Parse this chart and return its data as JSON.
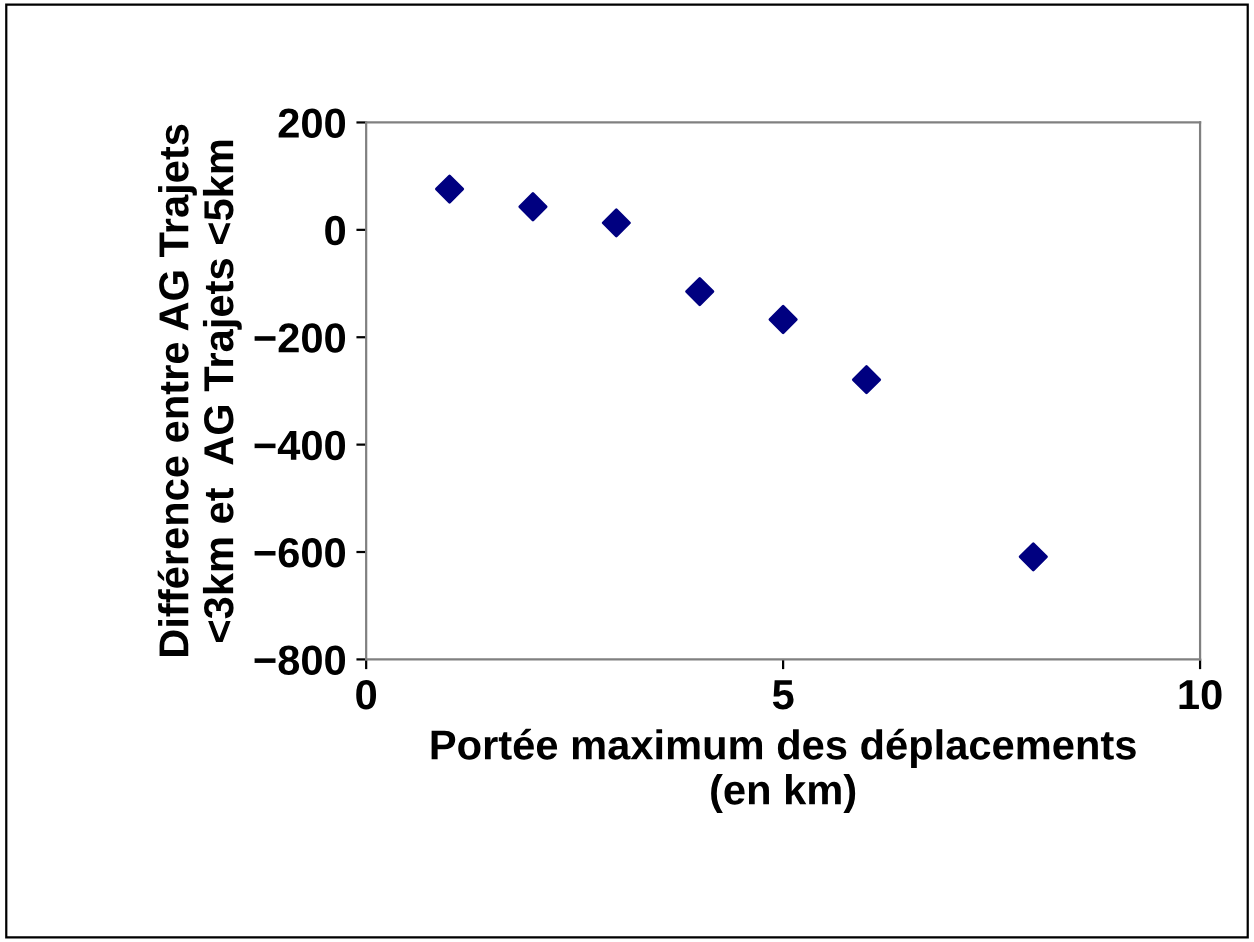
{
  "chart_data": {
    "type": "scatter",
    "xlabel": "Portée maximum des déplacements\n(en km)",
    "ylabel": "Différence entre AG Trajets\n<3km et  AG Trajets <5km",
    "x": [
      1,
      2,
      3,
      4,
      5,
      6,
      8
    ],
    "series": [
      {
        "color": "#000080",
        "values": [
          76,
          43,
          13,
          -115,
          -167,
          -279,
          -609
        ]
      }
    ],
    "marker": "diamond",
    "xlim": [
      0,
      10
    ],
    "xticks": [
      0,
      5,
      10
    ],
    "ylim": [
      -800,
      200
    ],
    "yticks": [
      -800,
      -600,
      -400,
      -200,
      0,
      200
    ],
    "grid": false,
    "legend": false
  }
}
